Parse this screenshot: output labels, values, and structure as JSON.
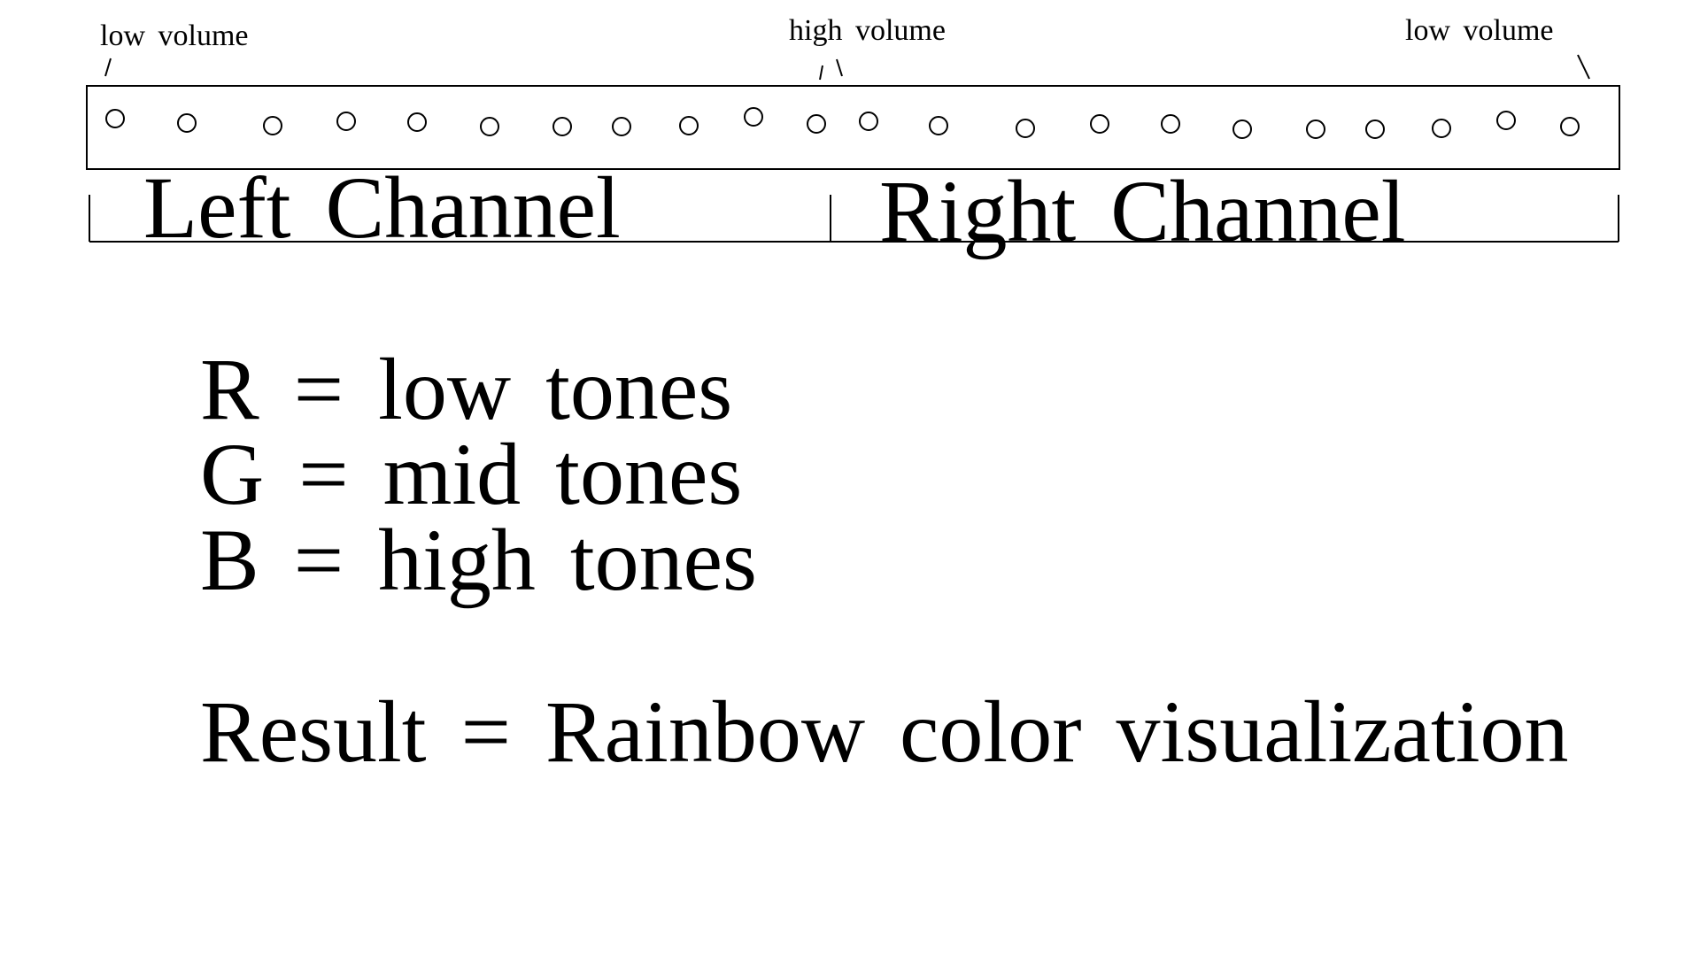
{
  "volume_labels": [
    "low volume",
    "high volume",
    "low volume"
  ],
  "channels": [
    "Left Channel",
    "Right Channel"
  ],
  "legend": [
    "R = low tones",
    "G = mid tones",
    "B = high tones"
  ],
  "result": "Result = Rainbow color visualization"
}
